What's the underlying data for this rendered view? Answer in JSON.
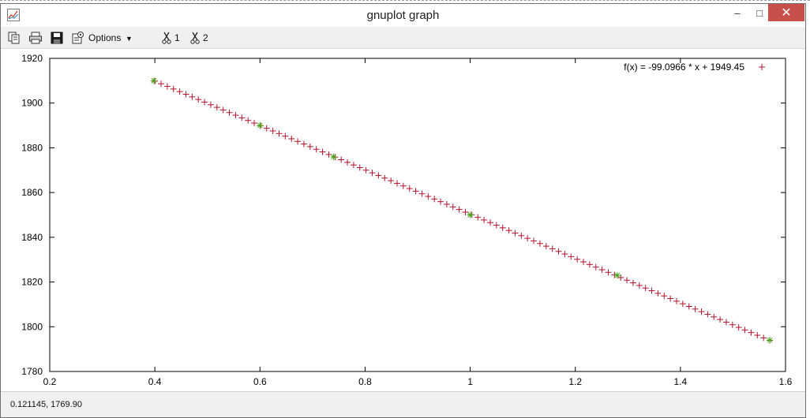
{
  "window": {
    "title": "gnuplot graph",
    "min_glyph": "–",
    "max_glyph": "□",
    "close_glyph": "✕"
  },
  "toolbar": {
    "options_label": "Options",
    "options_caret": "▼",
    "cut1_label": "1",
    "cut2_label": "2"
  },
  "status": {
    "coords": "0.121145,  1769.90"
  },
  "colors": {
    "fit_points": "#b3112a",
    "data_points": "#45a51a",
    "close_button": "#c74f4a"
  },
  "icons": [
    "graph-icon",
    "copy-icon",
    "print-icon",
    "save-icon",
    "options-icon",
    "scissors-icon",
    "scissors-icon"
  ],
  "chart_data": {
    "type": "scatter",
    "xlim": [
      0.2,
      1.6
    ],
    "ylim": [
      1780,
      1920
    ],
    "xticks": [
      "0.2",
      "0.4",
      "0.6",
      "0.8",
      "1",
      "1.2",
      "1.4",
      "1.6"
    ],
    "yticks": [
      "1780",
      "1800",
      "1820",
      "1840",
      "1860",
      "1880",
      "1900",
      "1920"
    ],
    "grid": false,
    "legend_position": "top-right",
    "legend": "f(x) = -99.0966 * x + 1949.45",
    "series": [
      {
        "name": "f(x) = -99.0966 * x + 1949.45",
        "marker": "+",
        "slope": -99.0966,
        "intercept": 1949.45,
        "x_start": 0.4,
        "x_end": 1.57,
        "n_points": 100
      },
      {
        "marker": "*",
        "x": [
          0.398,
          0.6,
          0.74,
          1.0,
          1.28,
          1.57
        ],
        "y": [
          1910,
          1890,
          1876,
          1850,
          1823,
          1794
        ]
      }
    ]
  }
}
